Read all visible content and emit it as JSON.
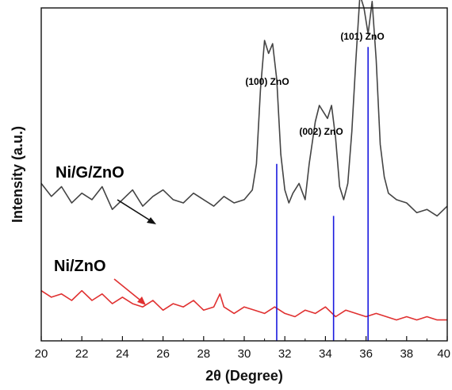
{
  "chart_data": {
    "type": "line",
    "xlabel": "2θ (Degree)",
    "ylabel": "Intensity (a.u.)",
    "xlim": [
      20,
      40
    ],
    "ylim": [
      0,
      100
    ],
    "x_ticks": [
      20,
      22,
      24,
      26,
      28,
      30,
      32,
      34,
      36,
      38,
      40
    ],
    "y_ticks_visible": false,
    "grid": false,
    "series": [
      {
        "name": "Ni/G/ZnO",
        "color": "#444444",
        "x": [
          20.0,
          20.5,
          21.0,
          21.5,
          22.0,
          22.5,
          23.0,
          23.5,
          24.0,
          24.5,
          25.0,
          25.5,
          26.0,
          26.5,
          27.0,
          27.5,
          28.0,
          28.5,
          29.0,
          29.5,
          30.0,
          30.4,
          30.6,
          30.8,
          31.0,
          31.2,
          31.4,
          31.6,
          31.8,
          32.0,
          32.2,
          32.4,
          32.7,
          33.0,
          33.2,
          33.5,
          33.7,
          33.9,
          34.1,
          34.3,
          34.5,
          34.7,
          34.9,
          35.1,
          35.3,
          35.5,
          35.7,
          35.9,
          36.1,
          36.3,
          36.5,
          36.7,
          36.9,
          37.1,
          37.5,
          38.0,
          38.5,
          39.0,
          39.5,
          40.0
        ],
        "y": [
          46,
          42,
          45,
          40,
          43,
          41,
          45,
          38,
          41,
          44,
          39,
          42,
          44,
          41,
          40,
          43,
          41,
          39,
          42,
          40,
          41,
          44,
          52,
          75,
          90,
          86,
          89,
          78,
          55,
          44,
          40,
          43,
          46,
          41,
          52,
          65,
          70,
          68,
          66,
          70,
          60,
          45,
          41,
          46,
          62,
          84,
          104,
          100,
          92,
          102,
          84,
          58,
          48,
          43,
          41,
          40,
          37,
          38,
          36,
          39
        ]
      },
      {
        "name": "Ni/ZnO",
        "color": "#e03030",
        "x": [
          20.0,
          20.5,
          21.0,
          21.5,
          22.0,
          22.5,
          23.0,
          23.5,
          24.0,
          24.5,
          25.0,
          25.5,
          26.0,
          26.5,
          27.0,
          27.5,
          28.0,
          28.5,
          28.8,
          29.0,
          29.5,
          30.0,
          30.5,
          31.0,
          31.5,
          32.0,
          32.5,
          33.0,
          33.5,
          34.0,
          34.5,
          35.0,
          35.5,
          36.0,
          36.5,
          37.0,
          37.5,
          38.0,
          38.5,
          39.0,
          39.5,
          40.0
        ],
        "y": [
          13,
          11,
          12,
          10,
          13,
          10,
          12,
          9,
          11,
          9,
          8,
          10,
          7,
          9,
          8,
          10,
          7,
          8,
          12,
          8,
          6,
          8,
          7,
          6,
          8,
          6,
          5,
          7,
          6,
          8,
          5,
          7,
          6,
          5,
          6,
          5,
          4,
          5,
          4,
          5,
          4,
          4
        ]
      }
    ],
    "reference_lines": [
      {
        "x": 31.6,
        "height": 52,
        "color": "#1a1adf"
      },
      {
        "x": 34.4,
        "height": 36,
        "color": "#1a1adf"
      },
      {
        "x": 36.1,
        "height": 88,
        "color": "#1a1adf"
      }
    ],
    "annotations": [
      {
        "text": "(100) ZnO",
        "color": "#1a1adf"
      },
      {
        "text": "(002) ZnO",
        "color": "#1a1adf"
      },
      {
        "text": "(101) ZnO",
        "color": "#1a1adf"
      }
    ]
  }
}
